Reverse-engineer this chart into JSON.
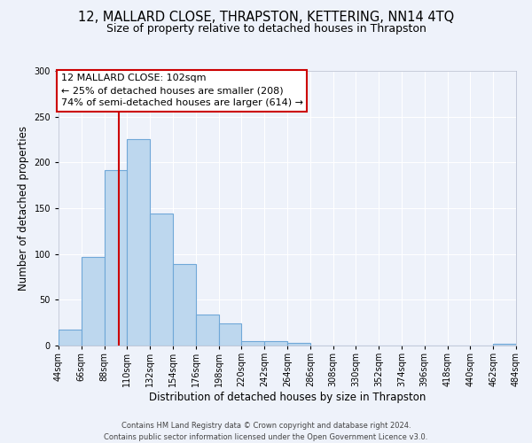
{
  "title": "12, MALLARD CLOSE, THRAPSTON, KETTERING, NN14 4TQ",
  "subtitle": "Size of property relative to detached houses in Thrapston",
  "xlabel": "Distribution of detached houses by size in Thrapston",
  "ylabel": "Number of detached properties",
  "bar_edges": [
    44,
    66,
    88,
    110,
    132,
    154,
    176,
    198,
    220,
    242,
    264,
    286,
    308,
    330,
    352,
    374,
    396,
    418,
    440,
    462,
    484
  ],
  "bar_heights": [
    17,
    97,
    192,
    225,
    144,
    89,
    34,
    24,
    5,
    5,
    3,
    0,
    0,
    0,
    0,
    0,
    0,
    0,
    0,
    2
  ],
  "bar_color": "#bdd7ee",
  "bar_edge_color": "#70a8d8",
  "property_line_x": 102,
  "property_line_color": "#cc0000",
  "annotation_title": "12 MALLARD CLOSE: 102sqm",
  "annotation_line1": "← 25% of detached houses are smaller (208)",
  "annotation_line2": "74% of semi-detached houses are larger (614) →",
  "annotation_box_color": "#ffffff",
  "annotation_box_edge_color": "#cc0000",
  "ylim": [
    0,
    300
  ],
  "yticks": [
    0,
    50,
    100,
    150,
    200,
    250,
    300
  ],
  "xtick_labels": [
    "44sqm",
    "66sqm",
    "88sqm",
    "110sqm",
    "132sqm",
    "154sqm",
    "176sqm",
    "198sqm",
    "220sqm",
    "242sqm",
    "264sqm",
    "286sqm",
    "308sqm",
    "330sqm",
    "352sqm",
    "374sqm",
    "396sqm",
    "418sqm",
    "440sqm",
    "462sqm",
    "484sqm"
  ],
  "footer1": "Contains HM Land Registry data © Crown copyright and database right 2024.",
  "footer2": "Contains public sector information licensed under the Open Government Licence v3.0.",
  "background_color": "#eef2fa",
  "grid_color": "#ffffff",
  "title_fontsize": 10.5,
  "subtitle_fontsize": 9,
  "xlabel_fontsize": 8.5,
  "ylabel_fontsize": 8.5,
  "tick_fontsize": 7,
  "footer_fontsize": 6,
  "annotation_fontsize": 8
}
